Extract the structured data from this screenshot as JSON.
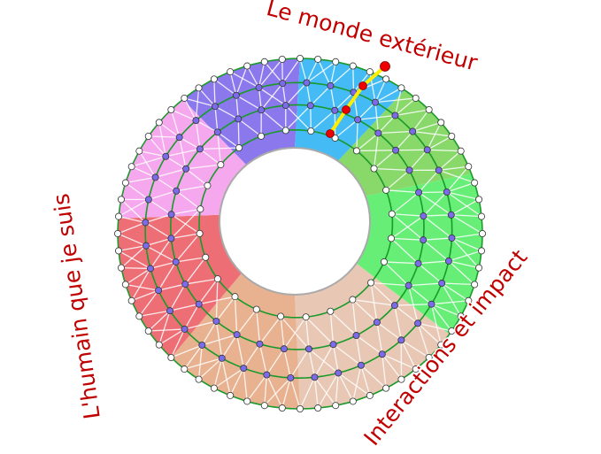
{
  "labels": {
    "top": "Le monde extérieur",
    "left": "L'humain que je suis",
    "right": "Interactions et impact"
  },
  "colors": {
    "label": "#c00000",
    "ring_line": "#1a9a2a",
    "mesh_line": "#ffffff",
    "outer_node": "#ffffff",
    "middle_node": "#7b6be8",
    "path_highlight": "#ffee00",
    "path_node": "#ee0000"
  },
  "sectors": [
    {
      "color": "#44bbf5"
    },
    {
      "color": "#88d86a"
    },
    {
      "color": "#66ee77"
    },
    {
      "color": "#e8c8b4"
    },
    {
      "color": "#e8b290"
    },
    {
      "color": "#ee6e76"
    },
    {
      "color": "#f5a8ee"
    },
    {
      "color": "#8a78ec"
    }
  ]
}
